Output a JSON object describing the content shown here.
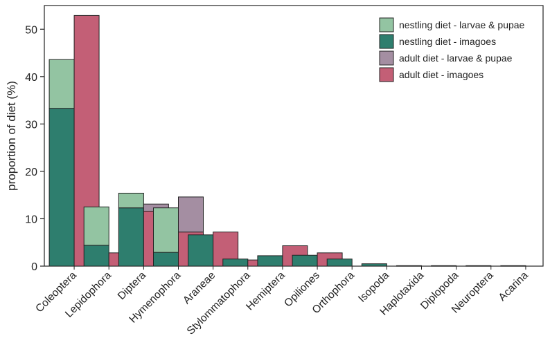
{
  "chart_data": {
    "type": "bar",
    "title": "",
    "xlabel": "",
    "ylabel": "proportion of diet (%)",
    "ylim": [
      0,
      55
    ],
    "yticks": [
      0,
      10,
      20,
      30,
      40,
      50
    ],
    "categories": [
      "Coleoptera",
      "Lepidophora",
      "Diptera",
      "Hymenophora",
      "Araneae",
      "Stylommatophora",
      "Hemiptera",
      "Opiliones",
      "Orthophora",
      "Isopoda",
      "Haplotaxida",
      "Diplopoda",
      "Neuroptera",
      "Acarina"
    ],
    "legend_position": "top-right",
    "series": [
      {
        "name": "nestling diet - larvae & pupae",
        "group": "nestling",
        "color": "#93c4a2",
        "values": [
          10.3,
          8.1,
          3.1,
          9.4,
          0,
          0,
          0,
          0,
          0,
          0,
          0,
          0,
          0,
          0
        ]
      },
      {
        "name": "nestling diet - imagoes",
        "group": "nestling",
        "color": "#2e7e6e",
        "values": [
          33.3,
          4.4,
          12.3,
          2.9,
          6.6,
          1.5,
          2.2,
          2.3,
          1.5,
          0.5,
          0.1,
          0.1,
          0.1,
          0.1
        ]
      },
      {
        "name": "adult diet - larvae & pupae",
        "group": "adult",
        "color": "#a48ea2",
        "values": [
          0,
          0,
          1.5,
          7.4,
          0,
          0,
          0,
          0,
          0,
          0,
          0,
          0,
          0,
          0
        ]
      },
      {
        "name": "adult diet - imagoes",
        "group": "adult",
        "color": "#c35f76",
        "values": [
          52.9,
          2.8,
          11.6,
          7.2,
          7.2,
          1.3,
          4.3,
          2.8,
          0,
          0,
          0,
          0,
          0,
          0
        ]
      }
    ]
  }
}
